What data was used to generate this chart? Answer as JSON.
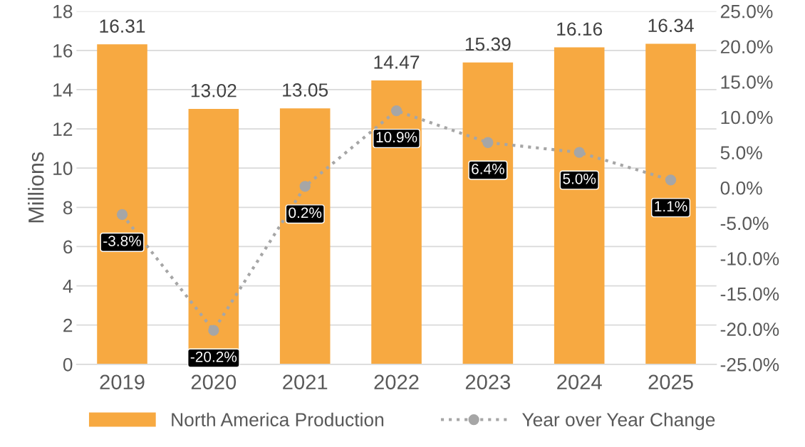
{
  "chart_data": {
    "type": "bar",
    "ylabel": "Millions",
    "categories": [
      "2019",
      "2020",
      "2021",
      "2022",
      "2023",
      "2024",
      "2025"
    ],
    "series": [
      {
        "name": "North America Production",
        "color": "#f7a941",
        "values": [
          16.31,
          13.02,
          13.05,
          14.47,
          15.39,
          16.16,
          16.34
        ],
        "value_labels": [
          "16.31",
          "13.02",
          "13.05",
          "14.47",
          "15.39",
          "16.16",
          "16.34"
        ]
      },
      {
        "name": "Year over Year Change",
        "type": "line",
        "axis": "y2",
        "color": "#a6a6a6",
        "marker": "circle",
        "line_style": "dotted",
        "values": [
          -3.8,
          -20.2,
          0.2,
          10.9,
          6.4,
          5.0,
          1.1
        ],
        "value_labels": [
          "-3.8%",
          "-20.2%",
          "0.2%",
          "10.9%",
          "6.4%",
          "5.0%",
          "1.1%"
        ]
      }
    ],
    "ylim": [
      0,
      18
    ],
    "yticks": [
      0,
      2,
      4,
      6,
      8,
      10,
      12,
      14,
      16,
      18
    ],
    "y2lim": [
      -25,
      25
    ],
    "y2ticks": [
      {
        "value": -25,
        "label": "-25.0%"
      },
      {
        "value": -20,
        "label": "-20.0%"
      },
      {
        "value": -15,
        "label": "-15.0%"
      },
      {
        "value": -10,
        "label": "-10.0%"
      },
      {
        "value": -5,
        "label": "-5.0%"
      },
      {
        "value": 0,
        "label": "0.0%"
      },
      {
        "value": 5,
        "label": "5.0%"
      },
      {
        "value": 10,
        "label": "10.0%"
      },
      {
        "value": 15,
        "label": "15.0%"
      },
      {
        "value": 20,
        "label": "20.0%"
      },
      {
        "value": 25,
        "label": "25.0%"
      }
    ],
    "grid": "y",
    "legend": "bottom"
  }
}
